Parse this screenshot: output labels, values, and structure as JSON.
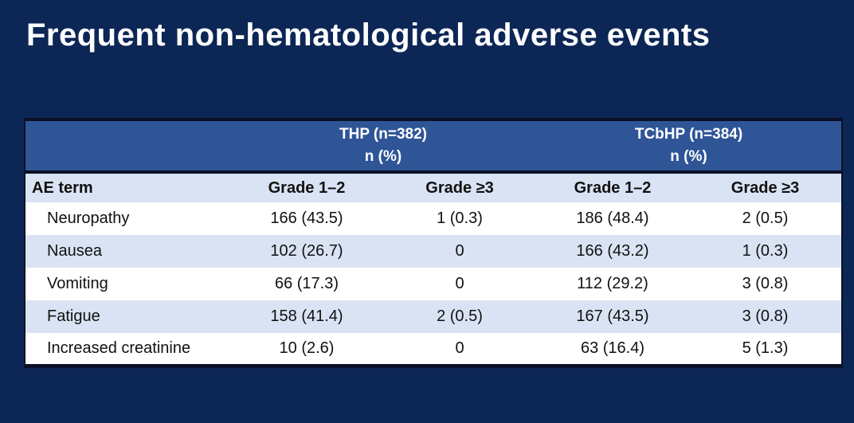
{
  "slide": {
    "title": "Frequent non-hematological adverse events"
  },
  "colors": {
    "background": "#0c2655",
    "header_blue": "#2f5597",
    "row_alt": "#dae3f3",
    "row_white": "#ffffff",
    "border_dark": "#0b1126",
    "title_text": "#ffffff",
    "text_dark": "#111111"
  },
  "table": {
    "group_headers": [
      {
        "label": "THP (n=382)",
        "sub": "n (%)"
      },
      {
        "label": "TCbHP (n=384)",
        "sub": "n (%)"
      }
    ],
    "column_headers": [
      "AE term",
      "Grade 1–2",
      "Grade ≥3",
      "Grade 1–2",
      "Grade ≥3"
    ],
    "rows": [
      {
        "term": "Neuropathy",
        "values": [
          "166 (43.5)",
          "1 (0.3)",
          "186 (48.4)",
          "2 (0.5)"
        ]
      },
      {
        "term": "Nausea",
        "values": [
          "102 (26.7)",
          "0",
          "166 (43.2)",
          "1 (0.3)"
        ]
      },
      {
        "term": "Vomiting",
        "values": [
          "66 (17.3)",
          "0",
          "112 (29.2)",
          "3 (0.8)"
        ]
      },
      {
        "term": "Fatigue",
        "values": [
          "158 (41.4)",
          "2 (0.5)",
          "167 (43.5)",
          "3 (0.8)"
        ]
      },
      {
        "term": "Increased creatinine",
        "values": [
          "10 (2.6)",
          "0",
          "63 (16.4)",
          "5 (1.3)"
        ]
      }
    ]
  },
  "chart_data": {
    "type": "table",
    "title": "Frequent non-hematological adverse events",
    "groups": [
      {
        "name": "THP",
        "n": 382,
        "unit": "n (%)"
      },
      {
        "name": "TCbHP",
        "n": 384,
        "unit": "n (%)"
      }
    ],
    "columns": [
      "AE term",
      "THP Grade 1–2",
      "THP Grade ≥3",
      "TCbHP Grade 1–2",
      "TCbHP Grade ≥3"
    ],
    "rows": [
      [
        "Neuropathy",
        "166 (43.5)",
        "1 (0.3)",
        "186 (48.4)",
        "2 (0.5)"
      ],
      [
        "Nausea",
        "102 (26.7)",
        "0",
        "166 (43.2)",
        "1 (0.3)"
      ],
      [
        "Vomiting",
        "66 (17.3)",
        "0",
        "112 (29.2)",
        "3 (0.8)"
      ],
      [
        "Fatigue",
        "158 (41.4)",
        "2 (0.5)",
        "167 (43.5)",
        "3 (0.8)"
      ],
      [
        "Increased creatinine",
        "10 (2.6)",
        "0",
        "63 (16.4)",
        "5 (1.3)"
      ]
    ]
  }
}
